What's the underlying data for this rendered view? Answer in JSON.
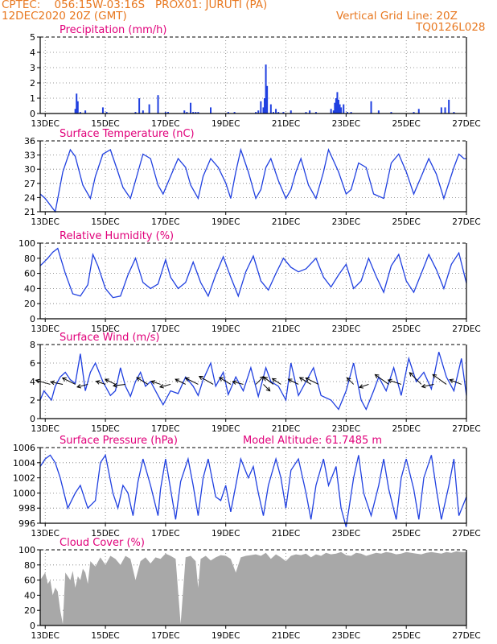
{
  "header": {
    "line1": "CPTEC:    056:15W-03:16S   PROX01: JURUTI (PA)",
    "line2": "12DEC2020 20Z (GMT)",
    "grid_note": "Vertical Grid Line: 20Z",
    "code": "TQ0126L028"
  },
  "colors": {
    "accent": "#e87820",
    "title": "#e0007a",
    "series": "#2040e0",
    "cloud": "#a8a8a8",
    "wind_arrow": "#000000"
  },
  "x_axis": {
    "ticks": [
      "13DEC",
      "15DEC",
      "17DEC",
      "19DEC",
      "21DEC",
      "23DEC",
      "25DEC",
      "27DEC"
    ],
    "tick_hours": [
      4,
      52,
      100,
      148,
      196,
      244,
      292,
      340
    ],
    "range_hours": [
      0,
      340
    ]
  },
  "chart_data": [
    {
      "id": "precip",
      "type": "bar",
      "title": "Precipitation (mm/h)",
      "extra_title": "",
      "ylim": [
        0,
        5
      ],
      "yticks": [
        "0",
        "1",
        "2",
        "3",
        "4",
        "5"
      ],
      "x": [
        28,
        29,
        30,
        32,
        36,
        50,
        53,
        76,
        79,
        82,
        87,
        94,
        100,
        102,
        115,
        117,
        120,
        122,
        124,
        126,
        136,
        150,
        155,
        172,
        174,
        176,
        178,
        179,
        180,
        181,
        184,
        186,
        188,
        190,
        194,
        200,
        212,
        215,
        220,
        232,
        234,
        235,
        236,
        237,
        238,
        239,
        240,
        242,
        245,
        248,
        264,
        270,
        280,
        298,
        302,
        320,
        323,
        326,
        330
      ],
      "values": [
        0.3,
        1.3,
        0.8,
        0.1,
        0.2,
        0.4,
        0.1,
        0.1,
        1.0,
        0.2,
        0.6,
        1.2,
        0.1,
        0.1,
        0.2,
        0.1,
        0.7,
        0.1,
        0.1,
        0.1,
        0.4,
        0.1,
        0.1,
        0.1,
        0.2,
        0.8,
        0.4,
        1.0,
        3.2,
        1.8,
        0.6,
        0.1,
        0.3,
        0.1,
        0.1,
        0.2,
        0.1,
        0.2,
        0.1,
        0.3,
        0.2,
        0.7,
        1.0,
        1.4,
        0.9,
        0.6,
        0.4,
        0.6,
        0.1,
        0.1,
        0.8,
        0.2,
        0.1,
        0.1,
        0.3,
        0.4,
        0.4,
        0.9,
        0.1
      ]
    },
    {
      "id": "temp",
      "type": "line",
      "title": "Surface Temperature (nC)",
      "extra_title": "",
      "ylim": [
        21,
        37
      ],
      "yticks": [
        "21",
        "24",
        "27",
        "30",
        "33",
        "36"
      ],
      "x": [
        0,
        4,
        8,
        12,
        18,
        24,
        28,
        34,
        40,
        44,
        50,
        56,
        62,
        66,
        72,
        76,
        82,
        88,
        94,
        98,
        104,
        110,
        116,
        120,
        126,
        130,
        136,
        142,
        148,
        152,
        156,
        160,
        166,
        172,
        176,
        180,
        184,
        190,
        196,
        200,
        204,
        208,
        214,
        220,
        226,
        230,
        238,
        244,
        248,
        254,
        260,
        266,
        274,
        280,
        286,
        292,
        298,
        304,
        310,
        316,
        322,
        330,
        334,
        338,
        340
      ],
      "y": [
        25,
        24,
        22.5,
        21,
        30,
        35,
        33.5,
        27,
        24,
        29,
        34,
        35,
        30,
        26.5,
        24,
        28,
        34,
        33,
        27,
        25,
        29,
        33,
        31,
        27,
        24,
        29,
        33,
        31,
        27.5,
        24,
        30,
        35,
        30,
        24,
        26,
        31,
        33,
        28,
        24,
        26,
        30,
        33,
        27,
        24,
        30,
        35,
        30,
        25,
        26,
        32,
        31,
        25,
        24,
        32,
        34,
        30,
        25,
        29,
        33,
        29.5,
        24,
        31,
        34,
        33,
        33
      ]
    },
    {
      "id": "rh",
      "type": "line",
      "title": "Relative Humidity (%)",
      "extra_title": "",
      "ylim": [
        0,
        100
      ],
      "yticks": [
        "0",
        "20",
        "40",
        "60",
        "80",
        "100"
      ],
      "x": [
        0,
        6,
        10,
        14,
        20,
        26,
        32,
        38,
        42,
        46,
        52,
        58,
        64,
        70,
        76,
        82,
        88,
        94,
        100,
        104,
        110,
        116,
        122,
        128,
        134,
        140,
        146,
        152,
        158,
        164,
        170,
        176,
        182,
        188,
        194,
        200,
        206,
        212,
        220,
        226,
        232,
        238,
        244,
        250,
        256,
        262,
        268,
        274,
        280,
        286,
        292,
        298,
        304,
        310,
        316,
        322,
        328,
        334,
        340
      ],
      "y": [
        70,
        80,
        88,
        93,
        60,
        33,
        30,
        45,
        85,
        70,
        40,
        28,
        30,
        58,
        80,
        48,
        40,
        46,
        78,
        55,
        40,
        48,
        75,
        48,
        30,
        58,
        82,
        55,
        30,
        62,
        83,
        50,
        38,
        60,
        80,
        68,
        62,
        66,
        80,
        55,
        42,
        58,
        72,
        40,
        50,
        80,
        56,
        35,
        70,
        85,
        50,
        35,
        60,
        85,
        65,
        40,
        72,
        87,
        47
      ]
    },
    {
      "id": "wind",
      "type": "line",
      "title": "Surface Wind (m/s)",
      "extra_title": "",
      "ylim": [
        0,
        8
      ],
      "yticks": [
        "0",
        "2",
        "4",
        "6",
        "8"
      ],
      "x": [
        0,
        3,
        6,
        9,
        12,
        16,
        20,
        24,
        28,
        32,
        36,
        40,
        44,
        50,
        56,
        60,
        64,
        68,
        72,
        76,
        80,
        84,
        88,
        94,
        98,
        104,
        110,
        116,
        122,
        126,
        130,
        136,
        140,
        146,
        150,
        156,
        162,
        168,
        174,
        180,
        184,
        190,
        196,
        200,
        206,
        212,
        218,
        224,
        232,
        238,
        244,
        250,
        256,
        260,
        266,
        270,
        276,
        282,
        288,
        294,
        300,
        306,
        312,
        318,
        324,
        330,
        336,
        340
      ],
      "y": [
        2.0,
        3.0,
        2.5,
        2.0,
        3.5,
        4.5,
        5.0,
        4.2,
        3.8,
        7.0,
        3.0,
        5.0,
        6.0,
        4.0,
        2.5,
        3.0,
        5.5,
        3.5,
        2.4,
        4.0,
        5.0,
        3.5,
        4.0,
        2.5,
        1.5,
        3.0,
        2.7,
        4.5,
        3.5,
        2.5,
        4.2,
        6.0,
        3.5,
        5.0,
        2.6,
        4.5,
        3.0,
        5.5,
        2.4,
        5.5,
        4.0,
        3.5,
        2.0,
        6.0,
        2.5,
        4.0,
        5.5,
        2.5,
        2.0,
        1.0,
        3.0,
        6.0,
        2.0,
        1.0,
        3.0,
        4.5,
        3.0,
        5.5,
        2.5,
        6.5,
        4.0,
        5.0,
        3.2,
        7.2,
        4.5,
        3.0,
        6.5,
        2.5
      ],
      "barbs": {
        "x": [
          8,
          18,
          28,
          38,
          52,
          60,
          68,
          86,
          96,
          104,
          116,
          126,
          138,
          152,
          162,
          172,
          178,
          186,
          192,
          206,
          216,
          222,
          250,
          262,
          278,
          288,
          304,
          314,
          324,
          336
        ],
        "u": [
          -3.5,
          -2.5,
          -3.0,
          -2.0,
          -1.5,
          -2.0,
          -2.5,
          -2.5,
          -1.5,
          -2.0,
          -2.0,
          -3.0,
          -3.5,
          -2.5,
          -2.0,
          1.5,
          1.0,
          -2.0,
          -1.5,
          -2.0,
          -2.5,
          -3.0,
          -1.0,
          -1.5,
          -3.5,
          -3.0,
          -3.0,
          -2.5,
          -3.5,
          -2.5
        ],
        "v": [
          1.0,
          0.5,
          1.5,
          -0.5,
          0.5,
          1.0,
          -0.3,
          1.5,
          0.5,
          -0.5,
          1.0,
          1.5,
          2.0,
          1.5,
          0.5,
          1.5,
          -1.0,
          1.5,
          1.0,
          1.0,
          1.5,
          1.5,
          1.0,
          -0.5,
          2.5,
          1.0,
          3.0,
          -0.5,
          2.5,
          1.0
        ]
      }
    },
    {
      "id": "pres",
      "type": "line",
      "title": "Surface Pressure (hPa)",
      "extra_title": "Model Altitude: 61.7485 m",
      "ylim": [
        996,
        1006
      ],
      "yticks": [
        "996",
        "998",
        "1000",
        "1002",
        "1004",
        "1006"
      ],
      "x": [
        0,
        4,
        8,
        12,
        16,
        22,
        28,
        32,
        34,
        38,
        44,
        48,
        52,
        58,
        62,
        66,
        70,
        74,
        78,
        82,
        88,
        94,
        96,
        100,
        104,
        108,
        112,
        118,
        122,
        126,
        130,
        134,
        140,
        144,
        148,
        152,
        156,
        160,
        166,
        170,
        174,
        178,
        182,
        188,
        192,
        196,
        200,
        206,
        212,
        216,
        220,
        226,
        230,
        236,
        240,
        244,
        250,
        254,
        258,
        264,
        270,
        274,
        278,
        284,
        288,
        292,
        298,
        302,
        306,
        312,
        316,
        320,
        326,
        330,
        334,
        340
      ],
      "y": [
        1003.5,
        1004.5,
        1005,
        1004,
        1002,
        998,
        1000,
        1001,
        1000,
        998,
        999,
        1004,
        1005,
        1000,
        998,
        1001,
        1000,
        997,
        1001.5,
        1004.5,
        1001,
        997,
        1000.5,
        1004.5,
        1000.5,
        996.5,
        1001.5,
        1004.5,
        1001,
        997,
        1002,
        1004.5,
        999.5,
        999,
        1001,
        997.5,
        1001,
        1004.5,
        1002,
        1003.5,
        1000,
        997,
        1001,
        1004.5,
        1002,
        998,
        1003,
        1004.5,
        1000,
        996.5,
        1001,
        1004.5,
        1001,
        1003.5,
        998,
        995.5,
        1002,
        1005,
        1000,
        997,
        1001,
        1004.5,
        1000.5,
        996.5,
        1002,
        1004.5,
        1000.5,
        996.5,
        1002,
        1005,
        1000.5,
        996.5,
        1001,
        1004.5,
        997,
        999.5
      ]
    },
    {
      "id": "cloud",
      "type": "area",
      "title": "Cloud Cover (%)",
      "extra_title": "",
      "ylim": [
        0,
        100
      ],
      "yticks": [
        "0",
        "20",
        "40",
        "60",
        "80",
        "100"
      ],
      "x": [
        0,
        2,
        4,
        6,
        8,
        10,
        12,
        14,
        16,
        18,
        20,
        22,
        24,
        26,
        28,
        30,
        32,
        34,
        36,
        38,
        40,
        44,
        48,
        52,
        56,
        60,
        64,
        68,
        72,
        76,
        80,
        84,
        88,
        92,
        96,
        100,
        104,
        108,
        112,
        116,
        120,
        124,
        126,
        128,
        132,
        136,
        140,
        144,
        148,
        152,
        156,
        160,
        164,
        168,
        172,
        176,
        180,
        184,
        188,
        192,
        196,
        200,
        204,
        208,
        212,
        216,
        220,
        224,
        228,
        232,
        236,
        240,
        244,
        248,
        252,
        256,
        260,
        264,
        268,
        272,
        276,
        280,
        284,
        288,
        292,
        296,
        300,
        304,
        308,
        312,
        316,
        320,
        324,
        328,
        332,
        336,
        340
      ],
      "y": [
        60,
        65,
        70,
        55,
        60,
        40,
        50,
        45,
        20,
        2,
        70,
        65,
        60,
        72,
        50,
        65,
        60,
        75,
        70,
        55,
        85,
        78,
        90,
        80,
        92,
        88,
        80,
        92,
        88,
        60,
        85,
        90,
        82,
        90,
        88,
        95,
        92,
        88,
        2,
        90,
        92,
        85,
        50,
        88,
        92,
        86,
        90,
        93,
        92,
        88,
        70,
        90,
        92,
        93,
        94,
        92,
        96,
        88,
        94,
        90,
        85,
        92,
        94,
        93,
        95,
        90,
        94,
        92,
        96,
        94,
        95,
        97,
        93,
        92,
        96,
        95,
        92,
        94,
        96,
        95,
        97,
        96,
        94,
        95,
        97,
        96,
        95,
        94,
        96,
        97,
        96,
        95,
        97,
        96,
        98,
        97,
        97
      ]
    }
  ]
}
